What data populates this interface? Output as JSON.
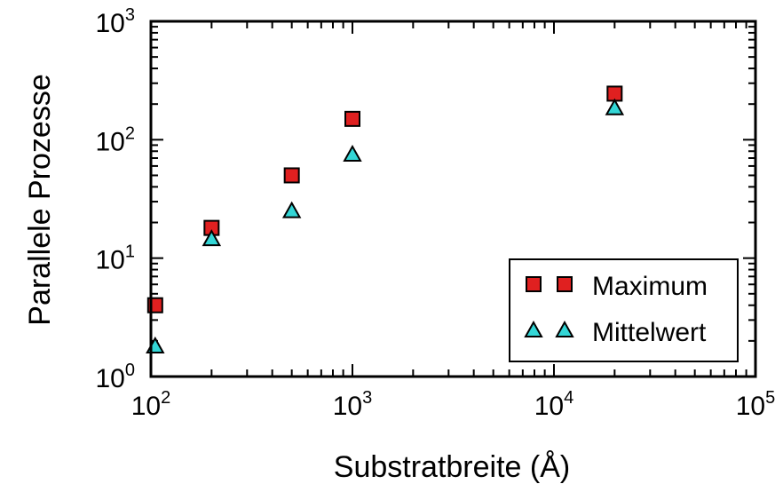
{
  "chart_data": {
    "type": "scatter",
    "xscale": "log",
    "yscale": "log",
    "xlim": [
      100,
      100000
    ],
    "ylim": [
      1,
      1000
    ],
    "xlabel": "Substratbreite (Å)",
    "ylabel": "Parallele Prozesse",
    "x_ticks": [
      {
        "base": "10",
        "exp": "2"
      },
      {
        "base": "10",
        "exp": "3"
      },
      {
        "base": "10",
        "exp": "4"
      },
      {
        "base": "10",
        "exp": "5"
      }
    ],
    "y_ticks": [
      {
        "base": "10",
        "exp": "0"
      },
      {
        "base": "10",
        "exp": "1"
      },
      {
        "base": "10",
        "exp": "2"
      },
      {
        "base": "10",
        "exp": "3"
      }
    ],
    "legend_position": "bottom-right",
    "grid": false,
    "series": [
      {
        "name": "Maximum",
        "marker": "square",
        "color": "#e02020",
        "x": [
          105,
          200,
          500,
          1000,
          20000
        ],
        "y": [
          4,
          18,
          50,
          150,
          245
        ]
      },
      {
        "name": "Mittelwert",
        "marker": "triangle",
        "color": "#33d6d6",
        "x": [
          105,
          200,
          500,
          1000,
          20000
        ],
        "y": [
          1.8,
          14.5,
          25,
          75,
          185
        ]
      }
    ]
  }
}
